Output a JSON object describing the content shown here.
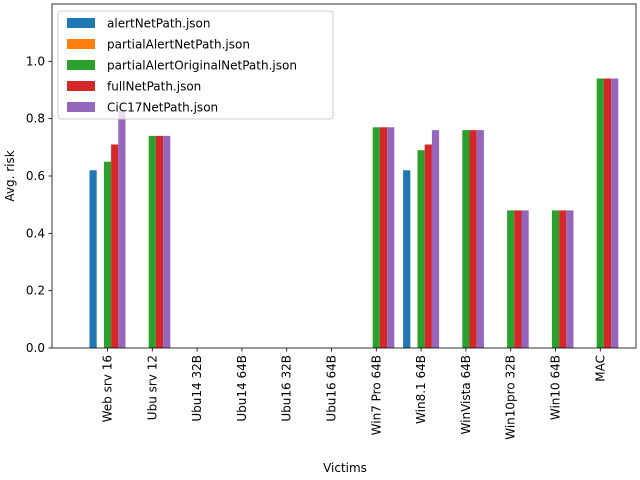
{
  "chart_data": {
    "type": "bar",
    "xlabel": "Victims",
    "ylabel": "Avg. risk",
    "ylim": [
      0,
      1.2
    ],
    "yticks": [
      0.0,
      0.2,
      0.4,
      0.6,
      0.8,
      1.0
    ],
    "ytick_labels": [
      "0.0",
      "0.2",
      "0.4",
      "0.6",
      "0.8",
      "1.0"
    ],
    "grid": false,
    "legend_position": "top-left",
    "categories": [
      "Web srv 16",
      "Ubu srv 12",
      "Ubu14 32B",
      "Ubu14 64B",
      "Ubu16 32B",
      "Ubu16 64B",
      "Win7 Pro 64B",
      "Win8.1 64B",
      "WinVista 64B",
      "Win10pro 32B",
      "Win10 64B",
      "MAC"
    ],
    "series": [
      {
        "name": "alertNetPath.json",
        "color": "#1f77b4",
        "values": [
          0.62,
          0,
          0,
          0,
          0,
          0,
          0,
          0.62,
          0,
          0,
          0,
          0
        ]
      },
      {
        "name": "partialAlertNetPath.json",
        "color": "#ff7f0e",
        "values": [
          0,
          0,
          0,
          0,
          0,
          0,
          0,
          0,
          0,
          0,
          0,
          0
        ]
      },
      {
        "name": "partialAlertOriginalNetPath.json",
        "color": "#2ca02c",
        "values": [
          0.65,
          0.74,
          0,
          0,
          0,
          0,
          0.77,
          0.69,
          0.76,
          0.48,
          0.48,
          0.94
        ]
      },
      {
        "name": "fullNetPath.json",
        "color": "#d62728",
        "values": [
          0.71,
          0.74,
          0,
          0,
          0,
          0,
          0.77,
          0.71,
          0.76,
          0.48,
          0.48,
          0.94
        ]
      },
      {
        "name": "CiC17NetPath.json",
        "color": "#9467bd",
        "values": [
          0.83,
          0.74,
          0,
          0,
          0,
          0,
          0.77,
          0.76,
          0.76,
          0.48,
          0.48,
          0.94
        ]
      }
    ]
  }
}
